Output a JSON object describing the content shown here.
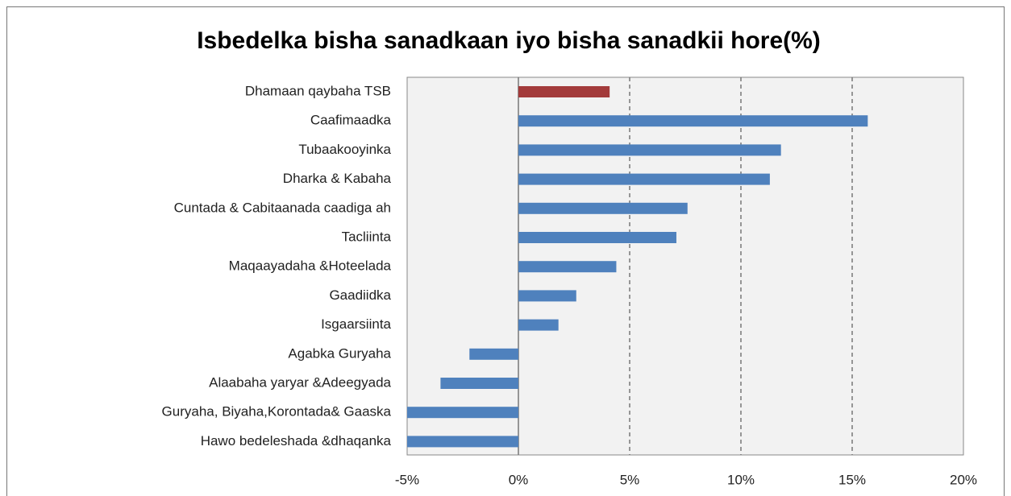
{
  "chart_data": {
    "type": "barh",
    "title": "Isbedelka bisha sanadkaan iyo bisha sanadkii hore(%)",
    "categories": [
      "Dhamaan qaybaha TSB",
      "Caafimaadka",
      "Tubaakooyinka",
      "Dharka & Kabaha",
      "Cuntada & Cabitaanada caadiga ah",
      "Tacliinta",
      "Maqaayadaha &Hoteelada",
      "Gaadiidka",
      "Isgaarsiinta",
      "Agabka Guryaha",
      "Alaabaha yaryar &Adeegyada",
      "Guryaha, Biyaha,Korontada& Gaaska",
      "Hawo bedeleshada &dhaqanka"
    ],
    "values": [
      4.1,
      15.7,
      11.8,
      11.3,
      7.6,
      7.1,
      4.4,
      2.6,
      1.8,
      -2.2,
      -3.5,
      -5,
      -5
    ],
    "colors": [
      "#a33b3b",
      "#4f81bd",
      "#4f81bd",
      "#4f81bd",
      "#4f81bd",
      "#4f81bd",
      "#4f81bd",
      "#4f81bd",
      "#4f81bd",
      "#4f81bd",
      "#4f81bd",
      "#4f81bd",
      "#4f81bd"
    ],
    "xlim": [
      -5,
      20
    ],
    "xticks": [
      {
        "value": -5,
        "label": "-5%"
      },
      {
        "value": 0,
        "label": "0%"
      },
      {
        "value": 5,
        "label": "5%"
      },
      {
        "value": 10,
        "label": "10%"
      },
      {
        "value": 15,
        "label": "15%"
      },
      {
        "value": 20,
        "label": "20%"
      }
    ],
    "grid": true
  }
}
